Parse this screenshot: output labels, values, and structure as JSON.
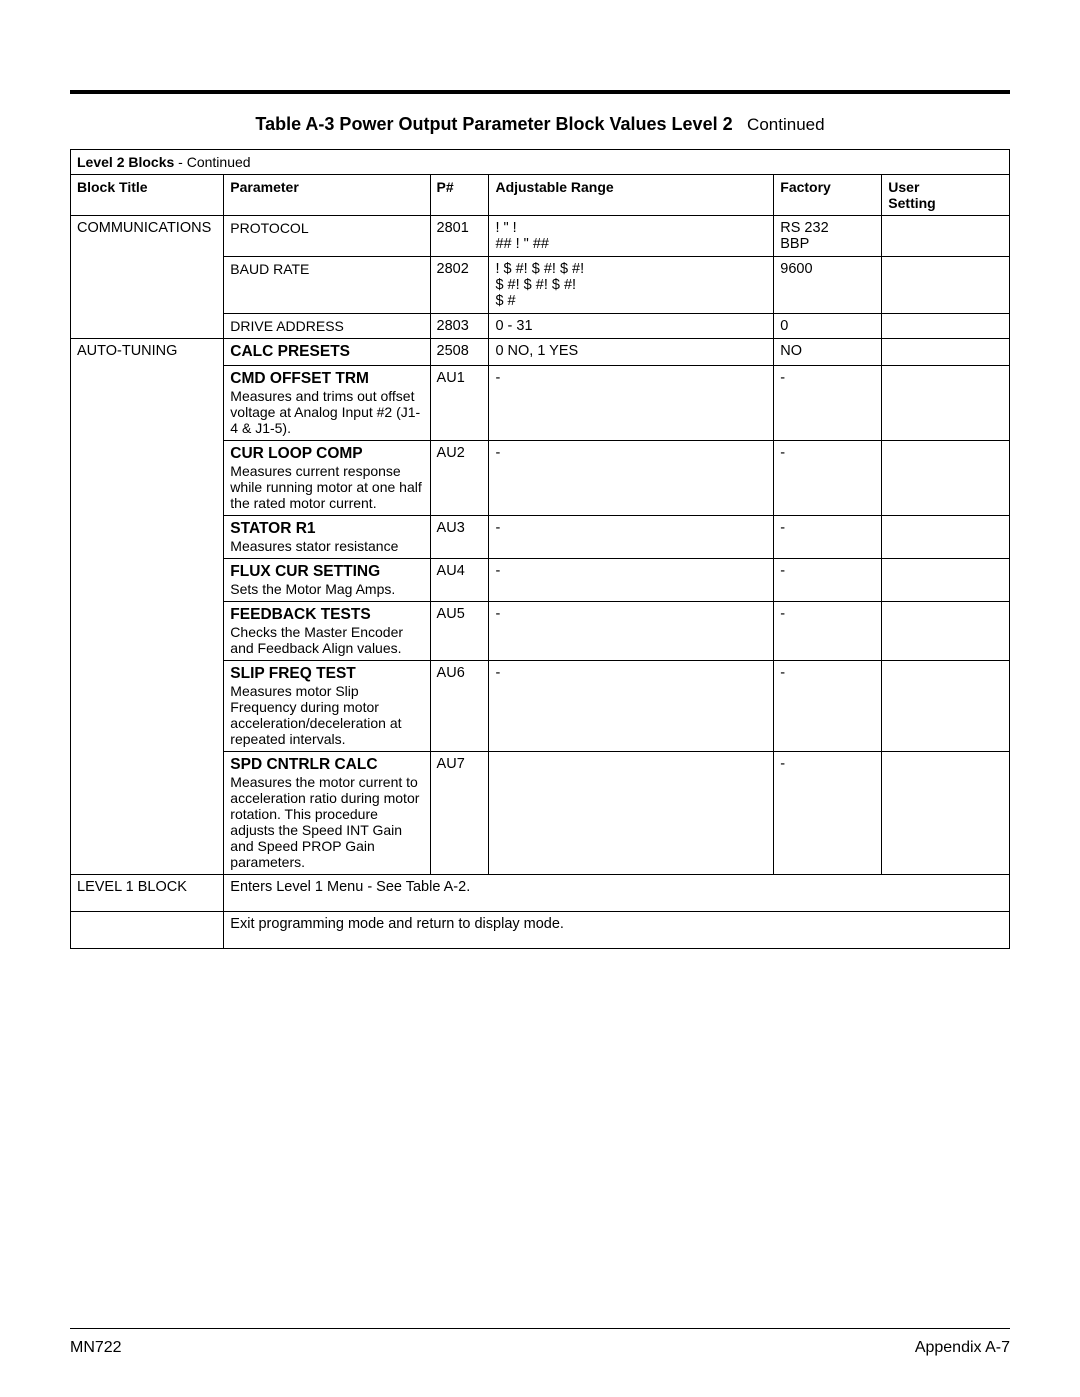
{
  "caption": {
    "title": "Table A-3  Power Output Parameter Block Values Level 2",
    "cont": "Continued"
  },
  "group_header": {
    "label": "Level 2 Blocks",
    "cont": " - Continued"
  },
  "columns": {
    "block_title": "Block Title",
    "parameter": "Parameter",
    "pnum": "P#",
    "range": "Adjustable Range",
    "factory": "Factory",
    "user": "User\nSetting"
  },
  "rows": [
    {
      "block": "COMMUNICATIONS",
      "param_bold": "",
      "param_desc": "PROTOCOL",
      "pnum": "2801",
      "range": "!       \"        !\n## !     \"     ##",
      "factory": "RS  232\nBBP",
      "user": "",
      "block_rowspan": 3
    },
    {
      "block": "",
      "param_bold": "",
      "param_desc": "BAUD RATE",
      "pnum": "2802",
      "range": "  !    $ #!    $ #!    $ #!\n$ #!    $ #!    $ #!\n$ #",
      "factory": "9600",
      "user": ""
    },
    {
      "block": "",
      "param_bold": "",
      "param_desc": "DRIVE ADDRESS",
      "pnum": "2803",
      "range": "0 - 31",
      "factory": "0",
      "user": ""
    },
    {
      "block": "AUTO-TUNING",
      "param_bold": "CALC PRESETS",
      "param_desc": "",
      "pnum": "2508",
      "range": "0  NO, 1  YES",
      "factory": "NO",
      "user": "",
      "block_rowspan": 8
    },
    {
      "block": "",
      "param_bold": "CMD OFFSET TRM",
      "param_desc": "Measures and trims out offset voltage at Analog Input #2 (J1-4 & J1-5).",
      "pnum": "AU1",
      "range": "-",
      "factory": "-",
      "user": ""
    },
    {
      "block": "",
      "param_bold": "CUR LOOP COMP",
      "param_desc": "Measures current response while running motor at one half the rated motor current.",
      "pnum": "AU2",
      "range": "-",
      "factory": "-",
      "user": ""
    },
    {
      "block": "",
      "param_bold": "STATOR R1",
      "param_desc": "Measures stator resistance",
      "pnum": "AU3",
      "range": "-",
      "factory": "-",
      "user": ""
    },
    {
      "block": "",
      "param_bold": "FLUX CUR SETTING",
      "param_desc": "Sets the Motor Mag Amps.",
      "pnum": "AU4",
      "range": "-",
      "factory": "-",
      "user": ""
    },
    {
      "block": "",
      "param_bold": "FEEDBACK TESTS",
      "param_desc": "Checks the Master Encoder and Feedback Align values.",
      "pnum": "AU5",
      "range": "-",
      "factory": "-",
      "user": ""
    },
    {
      "block": "",
      "param_bold": "SLIP FREQ TEST",
      "param_desc": "Measures motor Slip Frequency during motor acceleration/deceleration at repeated intervals.",
      "pnum": "AU6",
      "range": "-",
      "factory": "-",
      "user": ""
    },
    {
      "block": "",
      "param_bold": "SPD CNTRLR CALC",
      "param_desc": "Measures the motor current to acceleration ratio during motor rotation. This procedure adjusts the Speed INT Gain and Speed PROP Gain parameters.",
      "pnum": "AU7",
      "range": "",
      "factory": "-",
      "user": ""
    }
  ],
  "tail_rows": [
    {
      "block": "LEVEL 1 BLOCK",
      "text": "Enters Level 1 Menu - See Table A-2."
    },
    {
      "block": "",
      "text": "Exit programming mode and return to display mode."
    }
  ],
  "footer": {
    "left": "MN722",
    "right": "Appendix A-7"
  },
  "col_widths": {
    "block": "14%",
    "param": "20%",
    "pnum": "6%",
    "range": "28%",
    "factory": "10%",
    "user": "10%"
  },
  "colors": {
    "border": "#000000",
    "bg": "#ffffff",
    "text": "#000000"
  }
}
